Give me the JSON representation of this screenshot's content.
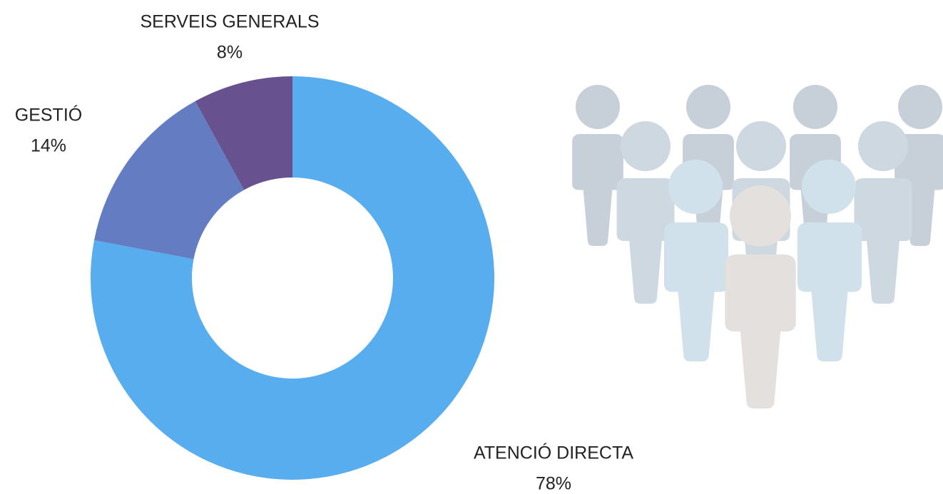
{
  "chart_data": {
    "type": "donut",
    "categories": [
      "ATENCIÓ DIRECTA",
      "GESTIÓ",
      "SERVEIS GENERALS"
    ],
    "values": [
      78,
      14,
      8
    ],
    "value_labels": [
      "78%",
      "14%",
      "8%"
    ],
    "colors": [
      "#57adee",
      "#647dc2",
      "#67528f"
    ]
  }
}
